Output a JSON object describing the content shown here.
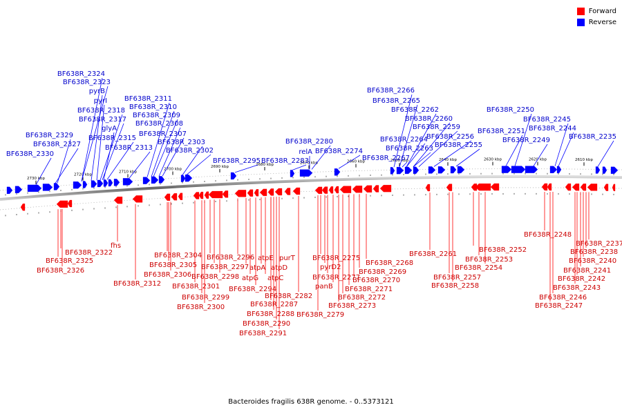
{
  "legend": {
    "forward_label": "Forward",
    "reverse_label": "Reverse",
    "forward_color": "#ff0000",
    "reverse_color": "#0000ff"
  },
  "footer": "Bacteroides fragilis 638R genome. - 0..5373121",
  "axis": {
    "unit": "kbp",
    "ticks": [
      2730,
      2720,
      2710,
      2700,
      2690,
      2680,
      2670,
      2660,
      2650,
      2640,
      2630,
      2620,
      2610
    ]
  },
  "reverse_genes": [
    "BF638R_2324",
    "BF638R_2323",
    "pyrB",
    "pyrI",
    "BF638R_2318",
    "BF638R_2317",
    "glyA",
    "BF638R_2315",
    "BF638R_2313",
    "BF638R_2311",
    "BF638R_2310",
    "BF638R_2309",
    "BF638R_2308",
    "BF638R_2307",
    "BF638R_2303",
    "BF638R_2302",
    "BF638R_2329",
    "BF638R_2327",
    "BF638R_2330",
    "BF638R_2295",
    "BF638R_2283",
    "BF638R_2280",
    "relA",
    "BF638R_2274",
    "BF638R_2266",
    "BF638R_2265",
    "BF638R_2262",
    "BF638R_2260",
    "BF638R_2259",
    "BF638R_2264",
    "BF638R_2256",
    "BF638R_2263",
    "BF638R_2255",
    "BF638R_2267",
    "BF638R_2250",
    "BF638R_2245",
    "BF638R_2244",
    "BF638R_2251",
    "BF638R_2249",
    "BF638R_2235"
  ],
  "forward_genes": [
    "fhs",
    "BF638R_2322",
    "BF638R_2325",
    "BF638R_2326",
    "BF638R_2312",
    "BF638R_2304",
    "BF638R_2305",
    "BF638R_2306",
    "BF638R_2301",
    "BF638R_2299",
    "BF638R_2300",
    "BF638R_2296",
    "BF638R_2297",
    "BF638R_2298",
    "atpE",
    "atpA",
    "atpG",
    "BF638R_2294",
    "atpD",
    "atpC",
    "purT",
    "BF638R_2287",
    "BF638R_2288",
    "BF638R_2290",
    "BF638R_2291",
    "BF638R_2282",
    "BF638R_2279",
    "BF638R_2275",
    "pyrD2",
    "BF638R_2277",
    "panB",
    "BF638R_2273",
    "BF638R_2272",
    "BF638R_2271",
    "BF638R_2270",
    "BF638R_2269",
    "BF638R_2268",
    "BF638R_2261",
    "BF638R_2257",
    "BF638R_2258",
    "BF638R_2252",
    "BF638R_2253",
    "BF638R_2254",
    "BF638R_2248",
    "BF638R_2237",
    "BF638R_2238",
    "BF638R_2240",
    "BF638R_2241",
    "BF638R_2242",
    "BF638R_2243",
    "BF638R_2246",
    "BF638R_2247"
  ]
}
